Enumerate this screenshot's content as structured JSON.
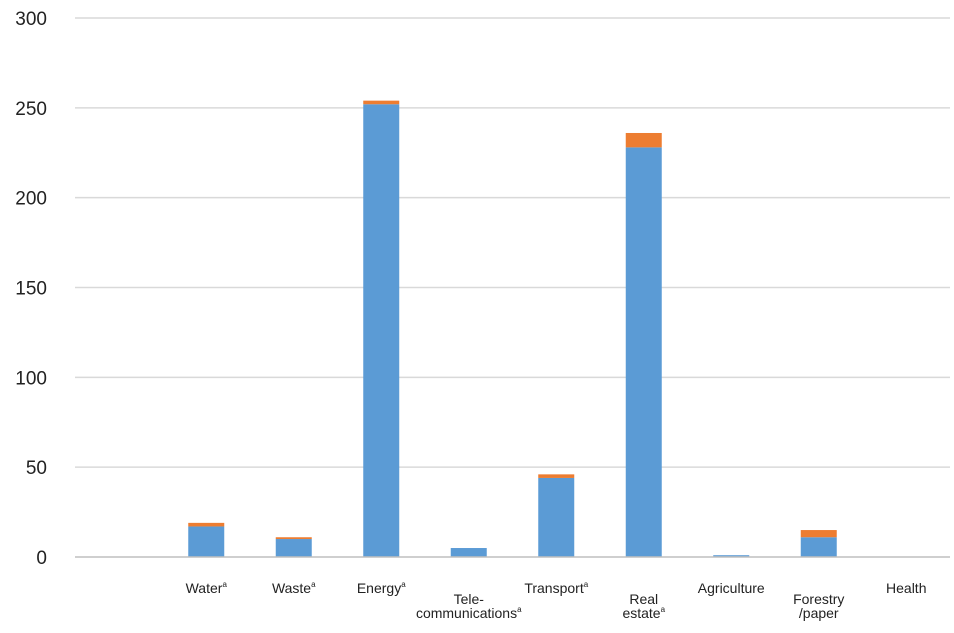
{
  "chart_data": {
    "type": "bar",
    "stacked": true,
    "title": "",
    "xlabel": "",
    "ylabel": "",
    "ylim": [
      0,
      300
    ],
    "yticks": [
      "0",
      "50",
      "100",
      "150",
      "200",
      "250",
      "300"
    ],
    "grid": true,
    "categories": [
      {
        "lines": [
          ""
        ],
        "sup": ""
      },
      {
        "lines": [
          "Water"
        ],
        "sup": "a"
      },
      {
        "lines": [
          "Waste"
        ],
        "sup": "a"
      },
      {
        "lines": [
          "Energy"
        ],
        "sup": "a"
      },
      {
        "lines": [
          "Tele-",
          "communications"
        ],
        "sup": "a"
      },
      {
        "lines": [
          "Transport"
        ],
        "sup": "a"
      },
      {
        "lines": [
          "Real",
          "estate"
        ],
        "sup": "a"
      },
      {
        "lines": [
          "Agriculture"
        ],
        "sup": ""
      },
      {
        "lines": [
          "Forestry",
          "/paper"
        ],
        "sup": ""
      },
      {
        "lines": [
          "Health"
        ],
        "sup": ""
      }
    ],
    "series": [
      {
        "color": "#5B9BD5",
        "values": [
          0,
          17,
          10,
          252,
          5,
          44,
          228,
          1,
          11,
          0
        ]
      },
      {
        "color": "#ED7D31",
        "values": [
          0,
          2,
          1,
          2,
          0,
          2,
          8,
          0,
          4,
          0
        ]
      }
    ],
    "colors": {
      "grid": "#d9d9d9",
      "axis": "#bfbfbf",
      "text": "#222222"
    }
  }
}
